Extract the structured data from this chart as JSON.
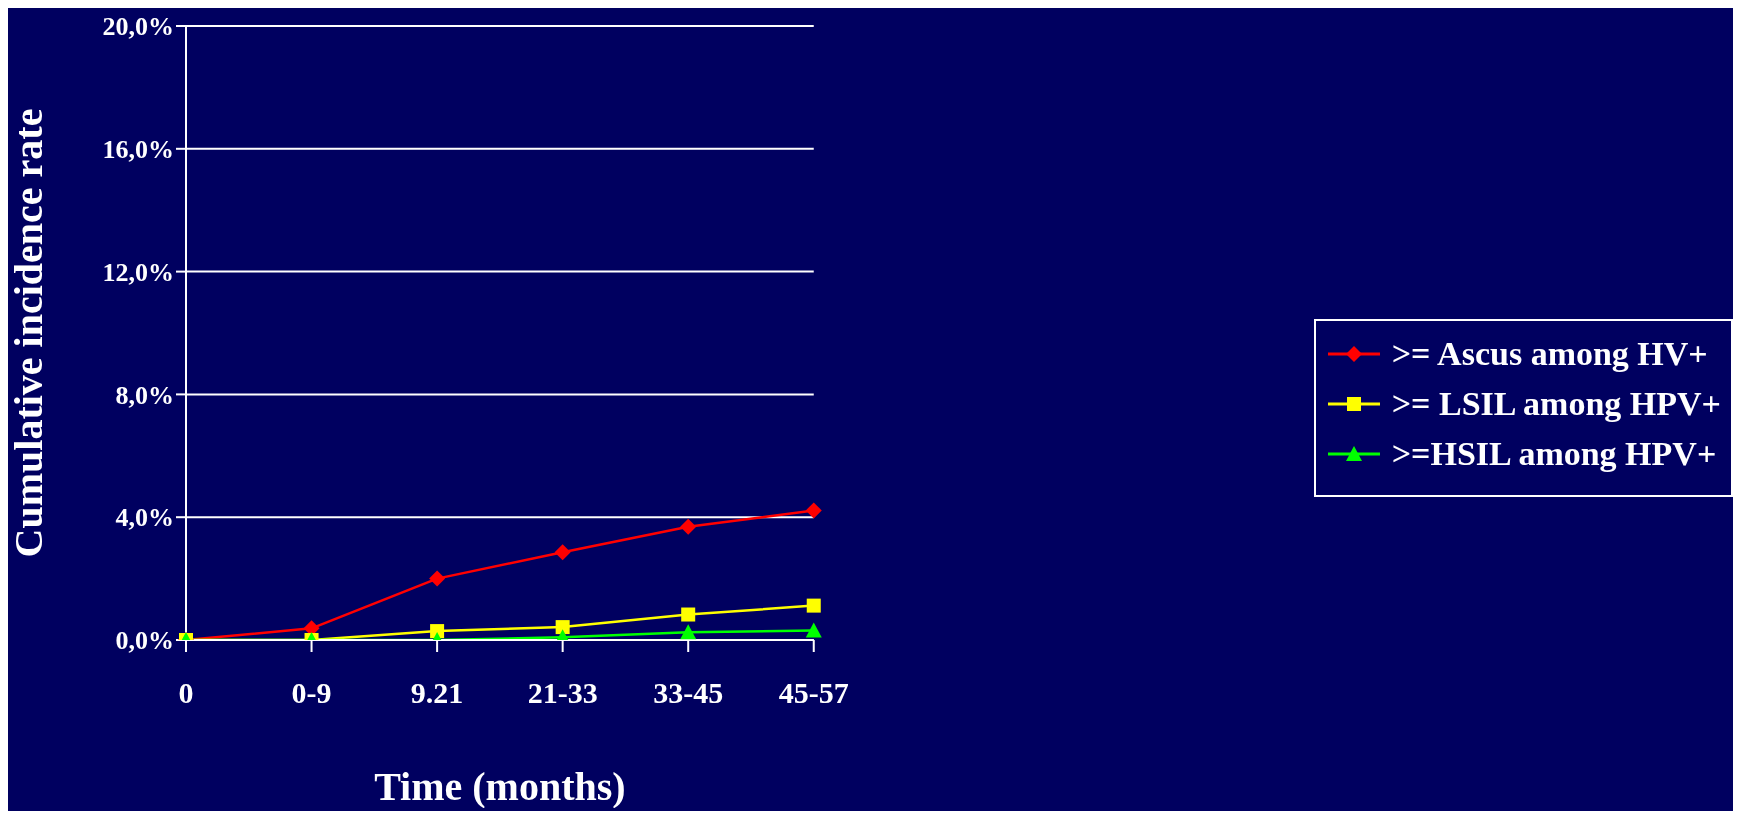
{
  "chart_data": {
    "type": "line",
    "xlabel": "Time (months)",
    "ylabel": "Cumulative incidence rate",
    "categories": [
      "0",
      "0-9",
      "9.21",
      "21-33",
      "33-45",
      "45-57"
    ],
    "series": [
      {
        "name": ">= Ascus among HV+",
        "color": "#ff0000",
        "marker": "diamond",
        "values": [
          0,
          0.38,
          2.0,
          2.86,
          3.69,
          4.22
        ]
      },
      {
        "name": ">= LSIL among HPV+",
        "color": "#ffff00",
        "marker": "square",
        "values": [
          0,
          0,
          0.29,
          0.42,
          0.83,
          1.12
        ]
      },
      {
        "name": ">=HSIL among HPV+",
        "color": "#00ff00",
        "marker": "triangle",
        "values": [
          0,
          0,
          0,
          0.09,
          0.25,
          0.31
        ]
      }
    ],
    "ylim": [
      0,
      20
    ],
    "yticks": [
      {
        "value": 0,
        "label": "0,0%"
      },
      {
        "value": 4,
        "label": "4,0%"
      },
      {
        "value": 8,
        "label": "8,0%"
      },
      {
        "value": 12,
        "label": "12,0%"
      },
      {
        "value": 16,
        "label": "16,0%"
      },
      {
        "value": 20,
        "label": "20,0%"
      }
    ],
    "grid": "y",
    "legend": "right",
    "line_style": "solid"
  }
}
